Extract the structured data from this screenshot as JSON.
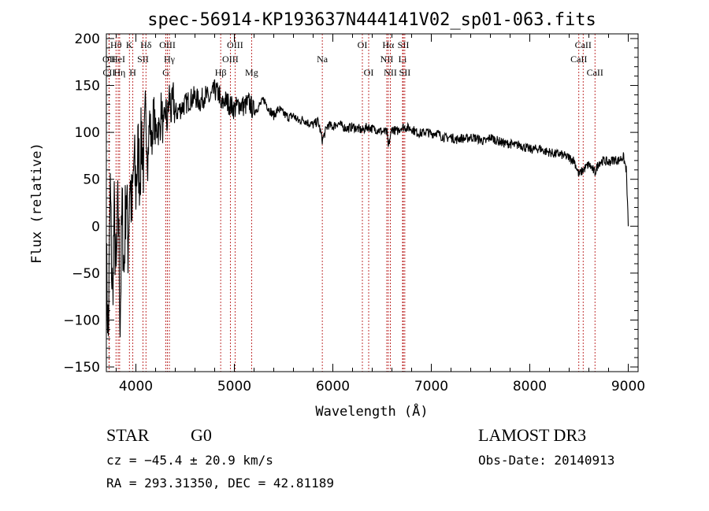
{
  "chart_data": {
    "type": "line",
    "title": "spec-56914-KP193637N444141V02_sp01-063.fits",
    "xlabel": "Wavelength (Å)",
    "ylabel": "Flux (relative)",
    "xlim": [
      3700,
      9100
    ],
    "ylim": [
      -155,
      205
    ],
    "x_ticks": [
      4000,
      5000,
      6000,
      7000,
      8000,
      9000
    ],
    "y_ticks": [
      -150,
      -100,
      -50,
      0,
      50,
      100,
      150,
      200
    ],
    "grid": false,
    "series": [
      {
        "x": [
          3700,
          3720,
          3740,
          3760,
          3780,
          3800,
          3820,
          3840,
          3860,
          3880,
          3900,
          3920,
          3940,
          3960,
          3980,
          4000,
          4020,
          4040,
          4060,
          4080,
          4100,
          4120,
          4140,
          4160,
          4180,
          4200,
          4220,
          4240,
          4260,
          4280,
          4300,
          4320,
          4340,
          4360,
          4380,
          4400,
          4450,
          4500,
          4550,
          4600,
          4650,
          4700,
          4750,
          4800,
          4850,
          4861,
          4900,
          4950,
          5000,
          5050,
          5100,
          5150,
          5200,
          5250,
          5300,
          5350,
          5400,
          5450,
          5500,
          5550,
          5600,
          5650,
          5700,
          5750,
          5800,
          5850,
          5893,
          5950,
          6000,
          6050,
          6100,
          6150,
          6200,
          6250,
          6300,
          6350,
          6400,
          6450,
          6500,
          6550,
          6563,
          6600,
          6650,
          6700,
          6750,
          6800,
          6850,
          6900,
          6950,
          7000,
          7050,
          7100,
          7150,
          7200,
          7250,
          7300,
          7350,
          7400,
          7450,
          7500,
          7550,
          7600,
          7650,
          7700,
          7750,
          7800,
          7850,
          7900,
          7950,
          8000,
          8050,
          8100,
          8150,
          8200,
          8250,
          8300,
          8350,
          8400,
          8450,
          8498,
          8542,
          8600,
          8662,
          8700,
          8750,
          8800,
          8850,
          8900,
          8950,
          8980,
          9000
        ],
        "y": [
          -40,
          -120,
          40,
          -80,
          10,
          -60,
          30,
          -100,
          20,
          -50,
          45,
          -20,
          55,
          10,
          70,
          40,
          80,
          55,
          100,
          60,
          120,
          70,
          115,
          85,
          125,
          95,
          110,
          100,
          130,
          95,
          125,
          110,
          140,
          120,
          135,
          120,
          125,
          130,
          135,
          138,
          132,
          140,
          135,
          145,
          140,
          125,
          135,
          130,
          125,
          130,
          128,
          132,
          122,
          128,
          135,
          125,
          118,
          125,
          120,
          116,
          118,
          112,
          114,
          110,
          108,
          112,
          92,
          108,
          106,
          110,
          106,
          104,
          106,
          104,
          102,
          106,
          104,
          103,
          101,
          100,
          84,
          104,
          101,
          106,
          105,
          104,
          100,
          99,
          101,
          98,
          100,
          96,
          94,
          95,
          92,
          94,
          93,
          95,
          94,
          92,
          90,
          95,
          92,
          90,
          88,
          88,
          86,
          87,
          84,
          82,
          82,
          83,
          80,
          79,
          77,
          77,
          75,
          73,
          70,
          55,
          60,
          66,
          57,
          68,
          70,
          68,
          71,
          70,
          74,
          60,
          0
        ]
      }
    ],
    "line_markers": [
      {
        "label": "CII",
        "x": 3727,
        "row": 2
      },
      {
        "label": "OII",
        "x": 3727,
        "row": 1
      },
      {
        "label": "Hθ",
        "x": 3798,
        "row": 0
      },
      {
        "label": "HeI",
        "x": 3820,
        "row": 1
      },
      {
        "label": "Hη",
        "x": 3835,
        "row": 2
      },
      {
        "label": "K",
        "x": 3934,
        "row": 0
      },
      {
        "label": "H",
        "x": 3969,
        "row": 2
      },
      {
        "label": "SII",
        "x": 4072,
        "row": 1
      },
      {
        "label": "Hδ",
        "x": 4102,
        "row": 0
      },
      {
        "label": "G",
        "x": 4304,
        "row": 2
      },
      {
        "label": "OIII",
        "x": 4320,
        "row": 0
      },
      {
        "label": "Hγ",
        "x": 4340,
        "row": 1
      },
      {
        "label": "Hβ",
        "x": 4861,
        "row": 2
      },
      {
        "label": "OIII",
        "x": 4959,
        "row": 1
      },
      {
        "label": "OIII",
        "x": 5007,
        "row": 0
      },
      {
        "label": "Mg",
        "x": 5175,
        "row": 2
      },
      {
        "label": "Na",
        "x": 5893,
        "row": 1
      },
      {
        "label": "OI",
        "x": 6300,
        "row": 0
      },
      {
        "label": "OI",
        "x": 6364,
        "row": 2
      },
      {
        "label": "NII",
        "x": 6548,
        "row": 1
      },
      {
        "label": "Hα",
        "x": 6563,
        "row": 0
      },
      {
        "label": "NII",
        "x": 6584,
        "row": 2
      },
      {
        "label": "Li",
        "x": 6708,
        "row": 1
      },
      {
        "label": "SII",
        "x": 6716,
        "row": 0
      },
      {
        "label": "SII",
        "x": 6731,
        "row": 2
      },
      {
        "label": "CaII",
        "x": 8498,
        "row": 1
      },
      {
        "label": "CaII",
        "x": 8542,
        "row": 0
      },
      {
        "label": "CaII",
        "x": 8662,
        "row": 2
      }
    ]
  },
  "info": {
    "object_class": "STAR",
    "subclass": "G0",
    "survey": "LAMOST DR3",
    "redshift": "cz = −45.4 ± 20.9 km/s",
    "obs_date": "Obs-Date: 20140913",
    "coords": "RA = 293.31350, DEC =  42.81189"
  },
  "colors": {
    "line_marker": "#b00000",
    "spectrum": "#000000"
  }
}
